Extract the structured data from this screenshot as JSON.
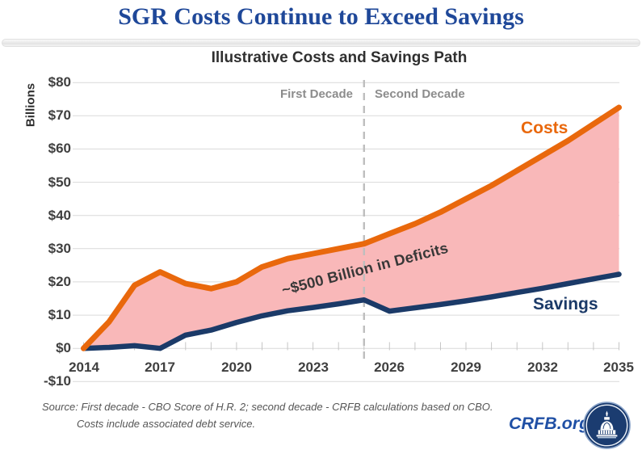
{
  "header": {
    "title": "SGR Costs Continue to Exceed Savings"
  },
  "chart_data": {
    "type": "area",
    "title": "Illustrative Costs and Savings Path",
    "ylabel": "Billions",
    "xlabel": "",
    "x": [
      2014,
      2015,
      2016,
      2017,
      2018,
      2019,
      2020,
      2021,
      2022,
      2023,
      2024,
      2025,
      2026,
      2027,
      2028,
      2029,
      2030,
      2031,
      2032,
      2033,
      2034,
      2035
    ],
    "series": [
      {
        "name": "Costs",
        "color": "#E9680C",
        "values": [
          0,
          8,
          19,
          23,
          19.5,
          18,
          20,
          24.5,
          27,
          28.5,
          30,
          31.5,
          34.5,
          37.5,
          41,
          45,
          49,
          53.5,
          58,
          62.5,
          67.5,
          72.5
        ]
      },
      {
        "name": "Savings",
        "color": "#1B3A68",
        "values": [
          0,
          0.3,
          0.8,
          0,
          4,
          5.5,
          7.8,
          9.8,
          11.3,
          12.3,
          13.4,
          14.6,
          11.2,
          12.2,
          13.2,
          14.3,
          15.5,
          16.8,
          18.1,
          19.5,
          20.9,
          22.3
        ]
      }
    ],
    "fill_between_color": "#F9B8B9",
    "fill_between_label": "~$500 Billion in Deficits",
    "annotation": "~$500 Billion in Deficits",
    "ylim": [
      -10,
      80
    ],
    "xlim": [
      2014,
      2035
    ],
    "grid": "horizontal",
    "legend_position": "inline-labels",
    "y_ticks": {
      "labels": [
        "$80",
        "$70",
        "$60",
        "$50",
        "$40",
        "$30",
        "$20",
        "$10",
        "$0",
        "-$10"
      ],
      "values": [
        80,
        70,
        60,
        50,
        40,
        30,
        20,
        10,
        0,
        -10
      ]
    },
    "x_ticks": {
      "labels": [
        "2014",
        "2017",
        "2020",
        "2023",
        "2026",
        "2029",
        "2032",
        "2035"
      ],
      "values": [
        2014,
        2017,
        2020,
        2023,
        2026,
        2029,
        2032,
        2035
      ]
    },
    "divider_year": 2025,
    "region_labels": {
      "first": "First Decade",
      "second": "Second Decade"
    }
  },
  "footer": {
    "source_line1": "Source: First decade - CBO Score of H.R. 2; second decade - CRFB calculations based on CBO.",
    "source_line2": "Costs include associated debt service.",
    "brand": "CRFB.org"
  },
  "colors": {
    "title_blue": "#1F4899",
    "costs_orange": "#E9680C",
    "savings_navy": "#1B3A68",
    "deficit_fill_pink": "#F9B8B9",
    "gridline_gray": "#D9D9D9",
    "dashed_divider_gray": "#BEBEBE",
    "logo_navy": "#1B3C70"
  }
}
